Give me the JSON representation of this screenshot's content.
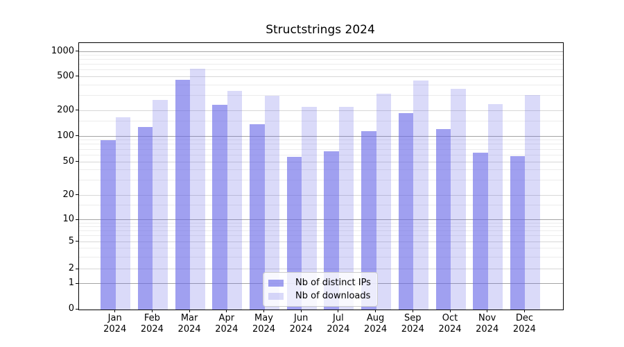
{
  "chart_data": {
    "type": "bar",
    "title": "Structstrings 2024",
    "categories": [
      "Jan 2024",
      "Feb 2024",
      "Mar 2024",
      "Apr 2024",
      "May 2024",
      "Jun 2024",
      "Jul 2024",
      "Aug 2024",
      "Sep 2024",
      "Oct 2024",
      "Nov 2024",
      "Dec 2024"
    ],
    "x_tick_line1": [
      "Jan",
      "Feb",
      "Mar",
      "Apr",
      "May",
      "Jun",
      "Jul",
      "Aug",
      "Sep",
      "Oct",
      "Nov",
      "Dec"
    ],
    "x_tick_line2": "2024",
    "series": [
      {
        "name": "Nb of distinct IPs",
        "color": "rgba(102,102,230,0.62)",
        "values": [
          91,
          130,
          464,
          238,
          140,
          58,
          67,
          116,
          189,
          123,
          65,
          59
        ]
      },
      {
        "name": "Nb of downloads",
        "color": "rgba(102,102,230,0.24)",
        "values": [
          168,
          270,
          630,
          340,
          300,
          225,
          222,
          320,
          455,
          366,
          241,
          305
        ]
      }
    ],
    "yscale": "symlog",
    "yticks": [
      0,
      1,
      2,
      5,
      10,
      20,
      50,
      100,
      200,
      500,
      1000
    ],
    "ylim": [
      0,
      1200
    ],
    "grid": "both",
    "legend_position": "lower center",
    "colors": {
      "bar_base": "#6666e6",
      "grid_decade": "#a3a3a3",
      "grid_sub": "#d7d7d7",
      "grid_minor": "#ececec",
      "spine": "#000000",
      "text": "#000000",
      "legend_border": "#cccccc",
      "legend_bg": "rgba(255,255,255,0.8)"
    }
  }
}
